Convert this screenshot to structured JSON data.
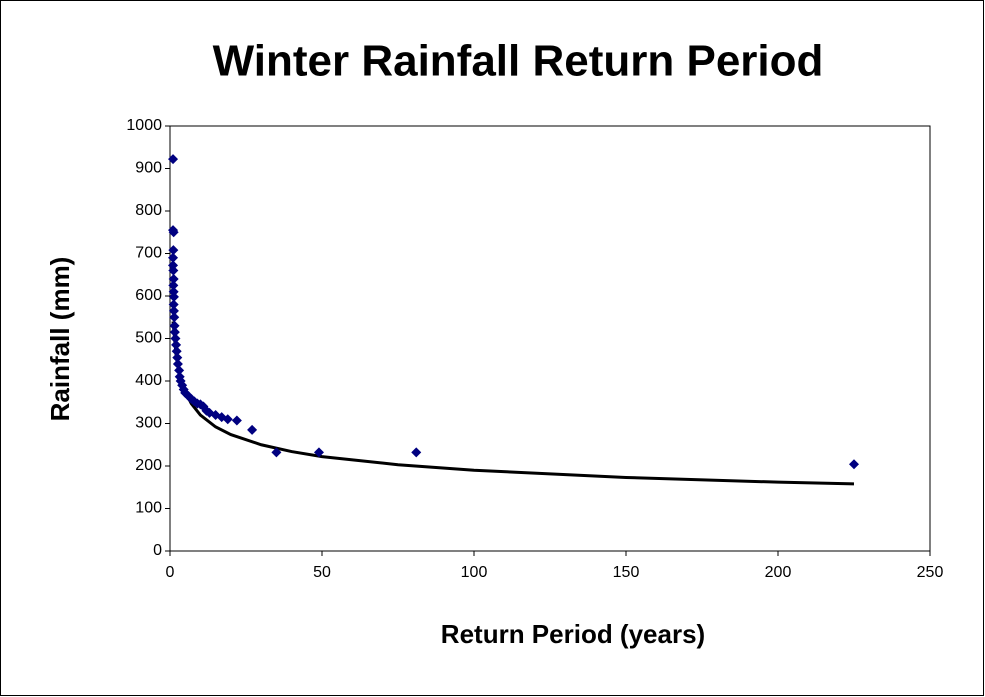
{
  "chart_data": {
    "type": "scatter",
    "title": "Winter Rainfall Return Period",
    "x_label": "Return Period (years)",
    "y_label": "Rainfall (mm)",
    "xlim": [
      0,
      250
    ],
    "xticks": [
      0,
      50,
      100,
      150,
      200,
      250
    ],
    "ylim": [
      0,
      1000
    ],
    "yticks": [
      0,
      100,
      200,
      300,
      400,
      500,
      600,
      700,
      800,
      900,
      1000
    ],
    "grid": false,
    "series": [
      {
        "color": "#000080",
        "x": [
          1,
          1,
          1.2,
          1.1,
          1,
          1,
          1.1,
          1.2,
          1.1,
          1.2,
          1.3,
          1.2,
          1.3,
          1.4,
          1.5,
          1.6,
          1.8,
          2,
          2.2,
          2.4,
          2.6,
          3,
          3.2,
          3.5,
          4,
          4.5,
          5,
          6,
          7,
          8,
          9,
          10,
          11,
          12,
          13,
          15,
          17,
          19,
          22,
          27,
          35,
          49,
          81,
          225
        ],
        "values": [
          922,
          755,
          750,
          708,
          690,
          672,
          660,
          640,
          625,
          610,
          598,
          580,
          565,
          550,
          530,
          515,
          500,
          485,
          470,
          455,
          440,
          425,
          410,
          400,
          390,
          380,
          372,
          365,
          358,
          352,
          347,
          345,
          340,
          330,
          325,
          320,
          315,
          310,
          307,
          285,
          232,
          232,
          232,
          204
        ]
      }
    ],
    "trendline": {
      "color": "#000000",
      "x": [
        1,
        2,
        3,
        5,
        7,
        10,
        15,
        20,
        30,
        40,
        50,
        75,
        100,
        150,
        200,
        225
      ],
      "values": [
        540,
        461,
        421,
        375,
        347,
        320,
        292,
        274,
        250,
        234,
        222,
        203,
        190,
        173,
        162,
        158
      ]
    }
  }
}
